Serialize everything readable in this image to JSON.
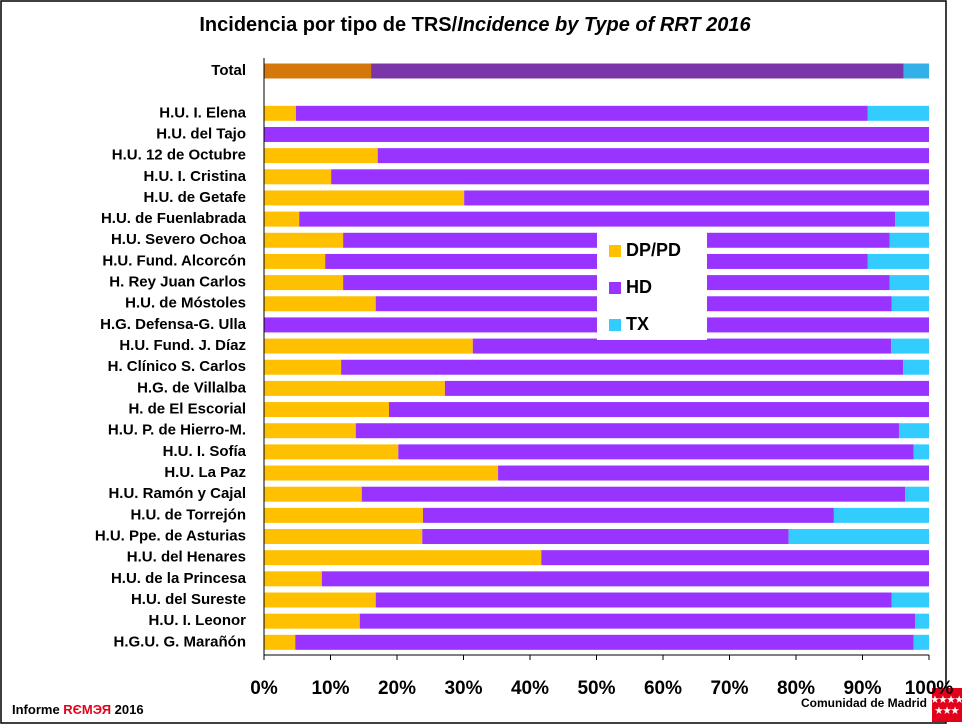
{
  "chart_data": {
    "type": "stacked_barh",
    "title": [
      "Incidencia por tipo de TRS/",
      "Incidence by Type of RRT 2016"
    ],
    "categories": [
      "Total",
      null,
      "H.U. I. Elena",
      "H.U. del Tajo",
      "H.U. 12 de Octubre",
      "H.U. I. Cristina",
      "H.U. de Getafe",
      "H.U. de Fuenlabrada",
      "H.U. Severo Ochoa",
      "H.U. Fund. Alcorcón",
      "H. Rey Juan Carlos",
      "H.U. de Móstoles",
      "H.G. Defensa-G. Ulla",
      "H.U. Fund. J. Díaz",
      "H. Clínico S. Carlos",
      "H.G. de Villalba",
      "H. de El Escorial",
      "H.U. P. de Hierro-M.",
      "H.U. I. Sofía",
      "H.U. La Paz",
      "H.U. Ramón y Cajal",
      "H.U. de Torrejón",
      "H.U. Ppe. de Asturias",
      "H.U. del Henares",
      "H.U. de la Princesa",
      "H.U. del Sureste",
      "H.U. I. Leonor",
      "H.G.U. G. Marañón"
    ],
    "series": [
      {
        "name": "DP/PD",
        "color": "#ffc000",
        "total_color": "#d4780e",
        "values": [
          16.1,
          null,
          4.8,
          0,
          17.1,
          10.1,
          30.1,
          5.3,
          11.9,
          9.2,
          11.9,
          16.8,
          0,
          31.4,
          11.6,
          27.2,
          18.8,
          13.8,
          20.2,
          35.2,
          14.7,
          23.9,
          23.8,
          41.7,
          8.7,
          16.8,
          14.4,
          4.7
        ]
      },
      {
        "name": "HD",
        "color": "#9933ff",
        "total_color": "#7a36a8",
        "values": [
          80.1,
          null,
          86.0,
          100,
          82.9,
          89.9,
          69.9,
          89.6,
          82.2,
          81.6,
          82.2,
          77.6,
          100,
          62.9,
          84.5,
          72.8,
          81.2,
          81.7,
          77.5,
          64.8,
          81.7,
          61.8,
          55.1,
          58.3,
          91.3,
          77.6,
          83.5,
          93.0
        ]
      },
      {
        "name": "TX",
        "color": "#33ccff",
        "total_color": "#33b0e8",
        "values": [
          3.8,
          null,
          9.2,
          0,
          0,
          0,
          0,
          5.1,
          5.9,
          9.2,
          5.9,
          5.6,
          0,
          5.7,
          3.9,
          0,
          0,
          4.5,
          2.3,
          0,
          3.6,
          14.3,
          21.1,
          0,
          0,
          5.6,
          2.1,
          2.3
        ]
      }
    ],
    "xlim": [
      0,
      100
    ],
    "xticks": [
      {
        "value": 0,
        "label": "0%"
      },
      {
        "value": 10,
        "label": "10%"
      },
      {
        "value": 20,
        "label": "20%"
      },
      {
        "value": 30,
        "label": "30%"
      },
      {
        "value": 40,
        "label": "40%"
      },
      {
        "value": 50,
        "label": "50%"
      },
      {
        "value": 60,
        "label": "60%"
      },
      {
        "value": 70,
        "label": "70%"
      },
      {
        "value": 80,
        "label": "80%"
      },
      {
        "value": 90,
        "label": "90%"
      },
      {
        "value": 100,
        "label": "100%"
      }
    ],
    "grid": false,
    "footer": {
      "prefix": "Informe ",
      "brand": "RЄМЭЯ",
      "year": " 2016",
      "right": "Comunidad de Madrid"
    }
  }
}
